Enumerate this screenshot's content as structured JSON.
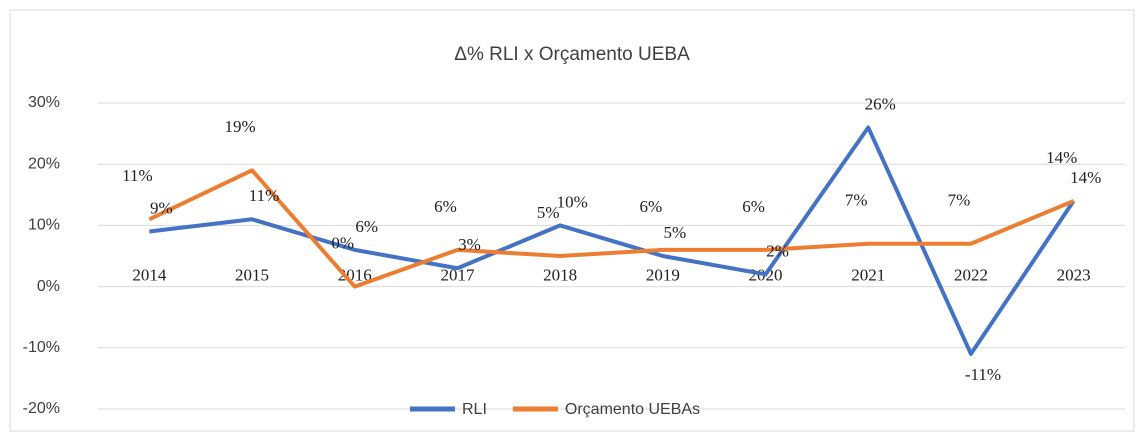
{
  "chart_data": {
    "type": "line",
    "title": "Δ% RLI x Orçamento UEBA",
    "categories": [
      "2014",
      "2015",
      "2016",
      "2017",
      "2018",
      "2019",
      "2020",
      "2021",
      "2022",
      "2023"
    ],
    "series": [
      {
        "name": "RLI",
        "color": "#4472c4",
        "values": [
          9,
          11,
          6,
          3,
          10,
          5,
          2,
          26,
          -11,
          14
        ],
        "value_labels": [
          "9%",
          "11%",
          "6%",
          "3%",
          "10%",
          "5%",
          "2%",
          "26%",
          "-11%",
          "14%"
        ]
      },
      {
        "name": "Orçamento UEBAs",
        "color": "#ed7d31",
        "values": [
          11,
          19,
          0,
          6,
          5,
          6,
          6,
          7,
          7,
          14
        ],
        "value_labels": [
          "11%",
          "19%",
          "0%",
          "6%",
          "5%",
          "6%",
          "6%",
          "7%",
          "7%",
          "14%"
        ]
      }
    ],
    "ylim": [
      -20,
      30
    ],
    "yticks": [
      {
        "value": -20,
        "label": "-20%"
      },
      {
        "value": -10,
        "label": "-10%"
      },
      {
        "value": 0,
        "label": "0%"
      },
      {
        "value": 10,
        "label": "10%"
      },
      {
        "value": 20,
        "label": "20%"
      },
      {
        "value": 30,
        "label": "30%"
      }
    ],
    "grid": true,
    "legend": "bottom"
  }
}
